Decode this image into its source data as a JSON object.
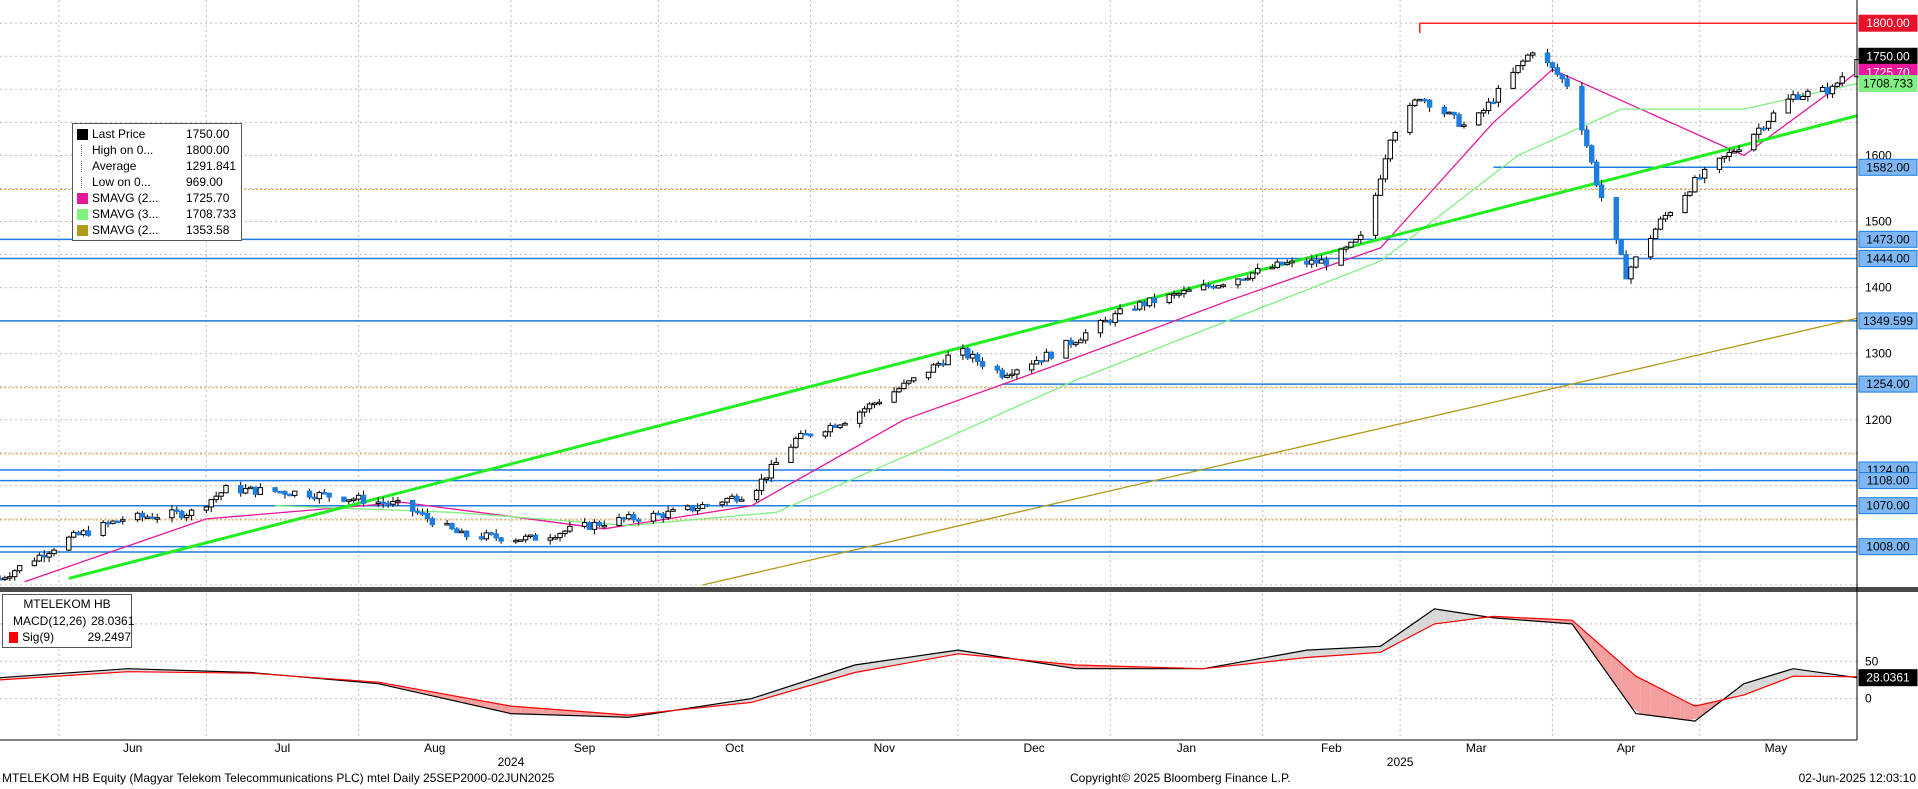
{
  "price_legend": [
    {
      "label": "Last Price",
      "value": "1750.00",
      "color": "#000000"
    },
    {
      "label": "High on 0...",
      "value": "1800.00",
      "color": ""
    },
    {
      "label": "Average",
      "value": "1291.841",
      "color": ""
    },
    {
      "label": "Low on 0...",
      "value": "969.00",
      "color": ""
    },
    {
      "label": "SMAVG (2...",
      "value": "1725.70",
      "color": "#e8179b"
    },
    {
      "label": "SMAVG (3...",
      "value": "1708.733",
      "color": "#80f080"
    },
    {
      "label": "SMAVG (2...",
      "value": "1353.58",
      "color": "#b09a1a"
    }
  ],
  "macd_legend": {
    "title": "MTELEKOM HB",
    "rows": [
      {
        "label": "MACD(12,26)",
        "value": "28.0361",
        "color": "#000000"
      },
      {
        "label": "Sig(9)",
        "value": "29.2497",
        "color": "#ff0000"
      }
    ]
  },
  "footer": {
    "left": "MTELEKOM HB Equity (Magyar Telekom Telecommunications PLC) mtel  Daily 25SEP2000-02JUN2025",
    "center": "Copyright© 2025 Bloomberg Finance L.P.",
    "right": "02-Jun-2025 12:03:10"
  },
  "chart_data": [
    {
      "type": "candlestick",
      "ylim": [
        950,
        1820
      ],
      "y_ticks": [
        1200,
        1300,
        1400,
        1500,
        1600
      ],
      "x_months": [
        "Jun",
        "Jul",
        "Aug",
        "Sep",
        "Oct",
        "Nov",
        "Dec",
        "Jan",
        "Feb",
        "Mar",
        "Apr",
        "May"
      ],
      "x_years": [
        "2024",
        "2025"
      ],
      "x_period": [
        "2024-05-20",
        "2025-06-02"
      ],
      "price_points": [
        {
          "date": "2024-05-20",
          "close": 960
        },
        {
          "date": "2024-06-03",
          "close": 1020
        },
        {
          "date": "2024-06-14",
          "close": 1050
        },
        {
          "date": "2024-06-28",
          "close": 1060
        },
        {
          "date": "2024-07-05",
          "close": 1095
        },
        {
          "date": "2024-07-20",
          "close": 1090
        },
        {
          "date": "2024-08-01",
          "close": 1080
        },
        {
          "date": "2024-08-10",
          "close": 1070
        },
        {
          "date": "2024-08-22",
          "close": 1025
        },
        {
          "date": "2024-09-05",
          "close": 1020
        },
        {
          "date": "2024-09-20",
          "close": 1045
        },
        {
          "date": "2024-10-05",
          "close": 1060
        },
        {
          "date": "2024-10-20",
          "close": 1090
        },
        {
          "date": "2024-10-29",
          "close": 1170
        },
        {
          "date": "2024-11-08",
          "close": 1200
        },
        {
          "date": "2024-11-22",
          "close": 1260
        },
        {
          "date": "2024-12-01",
          "close": 1305
        },
        {
          "date": "2024-12-10",
          "close": 1270
        },
        {
          "date": "2024-12-20",
          "close": 1300
        },
        {
          "date": "2025-01-05",
          "close": 1370
        },
        {
          "date": "2025-01-20",
          "close": 1400
        },
        {
          "date": "2025-02-05",
          "close": 1435
        },
        {
          "date": "2025-02-15",
          "close": 1440
        },
        {
          "date": "2025-02-22",
          "close": 1480
        },
        {
          "date": "2025-02-27",
          "close": 1630
        },
        {
          "date": "2025-03-05",
          "close": 1690
        },
        {
          "date": "2025-03-15",
          "close": 1640
        },
        {
          "date": "2025-03-28",
          "close": 1760
        },
        {
          "date": "2025-04-05",
          "close": 1700
        },
        {
          "date": "2025-04-10",
          "close": 1560
        },
        {
          "date": "2025-04-16",
          "close": 1420
        },
        {
          "date": "2025-04-23",
          "close": 1500
        },
        {
          "date": "2025-04-30",
          "close": 1560
        },
        {
          "date": "2025-05-10",
          "close": 1620
        },
        {
          "date": "2025-05-20",
          "close": 1690
        },
        {
          "date": "2025-05-28",
          "close": 1700
        },
        {
          "date": "2025-06-02",
          "close": 1750
        }
      ],
      "series": [
        {
          "name": "SMAVG (2...",
          "color": "#e8179b",
          "points": [
            {
              "date": "2024-05-25",
              "value": 955
            },
            {
              "date": "2024-07-01",
              "value": 1050
            },
            {
              "date": "2024-08-10",
              "value": 1075
            },
            {
              "date": "2024-09-20",
              "value": 1035
            },
            {
              "date": "2024-10-20",
              "value": 1070
            },
            {
              "date": "2024-11-20",
              "value": 1200
            },
            {
              "date": "2024-12-20",
              "value": 1280
            },
            {
              "date": "2025-01-25",
              "value": 1380
            },
            {
              "date": "2025-02-25",
              "value": 1460
            },
            {
              "date": "2025-03-20",
              "value": 1650
            },
            {
              "date": "2025-04-01",
              "value": 1730
            },
            {
              "date": "2025-04-25",
              "value": 1650
            },
            {
              "date": "2025-05-10",
              "value": 1600
            },
            {
              "date": "2025-06-02",
              "value": 1725.7
            }
          ]
        },
        {
          "name": "SMAVG (3...",
          "color": "#80f080",
          "points": [
            {
              "date": "2024-07-15",
              "value": 1070
            },
            {
              "date": "2024-08-20",
              "value": 1060
            },
            {
              "date": "2024-09-25",
              "value": 1040
            },
            {
              "date": "2024-10-25",
              "value": 1060
            },
            {
              "date": "2024-11-25",
              "value": 1160
            },
            {
              "date": "2024-12-25",
              "value": 1260
            },
            {
              "date": "2025-01-25",
              "value": 1350
            },
            {
              "date": "2025-02-25",
              "value": 1440
            },
            {
              "date": "2025-03-25",
              "value": 1600
            },
            {
              "date": "2025-04-15",
              "value": 1670
            },
            {
              "date": "2025-05-10",
              "value": 1670
            },
            {
              "date": "2025-06-02",
              "value": 1708.733
            }
          ]
        },
        {
          "name": "SMAVG (2...",
          "color": "#b09a1a",
          "points": [
            {
              "date": "2024-10-10",
              "value": 950
            },
            {
              "date": "2025-06-02",
              "value": 1353.58
            }
          ]
        }
      ],
      "trendline": {
        "color": "#22ee22",
        "points": [
          {
            "date": "2024-06-03",
            "value": 960
          },
          {
            "date": "2025-06-02",
            "value": 1660
          }
        ]
      },
      "resistance": {
        "color": "#ff2020",
        "value": 1800,
        "from": "2025-03-05",
        "to": "2025-06-02"
      },
      "h_lines": [
        {
          "value": 1582,
          "from": "2025-03-20",
          "label": "1582.00"
        },
        {
          "value": 1473,
          "from": "2024-05-20",
          "label": "1473.00"
        },
        {
          "value": 1444,
          "from": "2024-05-20",
          "label": "1444.00"
        },
        {
          "value": 1349.599,
          "from": "2024-05-20",
          "label": "1349.599"
        },
        {
          "value": 1254,
          "from": "2024-12-10",
          "label": "1254.00"
        },
        {
          "value": 1124,
          "from": "2024-05-20",
          "label": "1124.00"
        },
        {
          "value": 1108,
          "from": "2024-05-20",
          "label": "1108.00"
        },
        {
          "value": 1070,
          "from": "2024-05-20",
          "label": "1070.00"
        },
        {
          "value": 1008,
          "from": "2024-05-20",
          "label": "1008.00"
        },
        {
          "value": 1000,
          "from": "2024-05-20",
          "label": ""
        }
      ],
      "right_labels": [
        {
          "value": 1800,
          "text": "1800.00",
          "bg": "#e8102a",
          "fg": "#ffffff"
        },
        {
          "value": 1750,
          "text": "1750.00",
          "bg": "#000000",
          "fg": "#ffffff"
        },
        {
          "value": 1725.7,
          "text": "1725.70",
          "bg": "#e8179b",
          "fg": "#ffffff"
        },
        {
          "value": 1708.733,
          "text": "1708.733",
          "bg": "#80f080",
          "fg": "#000000"
        }
      ]
    },
    {
      "type": "line",
      "ylim": [
        -50,
        140
      ],
      "y_ticks": [
        0,
        50
      ],
      "right_label": {
        "text": "28.0361",
        "bg": "#000000",
        "fg": "#ffffff"
      },
      "series": [
        {
          "name": "MACD(12,26)",
          "color": "#000000",
          "points": [
            {
              "date": "2024-05-20",
              "value": 28
            },
            {
              "date": "2024-06-15",
              "value": 40
            },
            {
              "date": "2024-07-10",
              "value": 35
            },
            {
              "date": "2024-08-05",
              "value": 20
            },
            {
              "date": "2024-09-01",
              "value": -20
            },
            {
              "date": "2024-09-25",
              "value": -25
            },
            {
              "date": "2024-10-20",
              "value": 0
            },
            {
              "date": "2024-11-10",
              "value": 45
            },
            {
              "date": "2024-12-01",
              "value": 65
            },
            {
              "date": "2024-12-25",
              "value": 40
            },
            {
              "date": "2025-01-20",
              "value": 40
            },
            {
              "date": "2025-02-10",
              "value": 65
            },
            {
              "date": "2025-02-25",
              "value": 70
            },
            {
              "date": "2025-03-08",
              "value": 120
            },
            {
              "date": "2025-03-20",
              "value": 108
            },
            {
              "date": "2025-04-05",
              "value": 100
            },
            {
              "date": "2025-04-18",
              "value": -20
            },
            {
              "date": "2025-04-30",
              "value": -30
            },
            {
              "date": "2025-05-10",
              "value": 20
            },
            {
              "date": "2025-05-20",
              "value": 40
            },
            {
              "date": "2025-06-02",
              "value": 28.0361
            }
          ]
        },
        {
          "name": "Sig(9)",
          "color": "#ff0000",
          "points": [
            {
              "date": "2024-05-20",
              "value": 25
            },
            {
              "date": "2024-06-15",
              "value": 36
            },
            {
              "date": "2024-07-10",
              "value": 34
            },
            {
              "date": "2024-08-05",
              "value": 22
            },
            {
              "date": "2024-09-01",
              "value": -10
            },
            {
              "date": "2024-09-25",
              "value": -22
            },
            {
              "date": "2024-10-20",
              "value": -5
            },
            {
              "date": "2024-11-10",
              "value": 35
            },
            {
              "date": "2024-12-01",
              "value": 60
            },
            {
              "date": "2024-12-25",
              "value": 45
            },
            {
              "date": "2025-01-20",
              "value": 40
            },
            {
              "date": "2025-02-10",
              "value": 55
            },
            {
              "date": "2025-02-25",
              "value": 62
            },
            {
              "date": "2025-03-08",
              "value": 100
            },
            {
              "date": "2025-03-20",
              "value": 110
            },
            {
              "date": "2025-04-05",
              "value": 105
            },
            {
              "date": "2025-04-18",
              "value": 30
            },
            {
              "date": "2025-04-30",
              "value": -10
            },
            {
              "date": "2025-05-10",
              "value": 5
            },
            {
              "date": "2025-05-20",
              "value": 30
            },
            {
              "date": "2025-06-02",
              "value": 29.2497
            }
          ]
        }
      ]
    }
  ]
}
